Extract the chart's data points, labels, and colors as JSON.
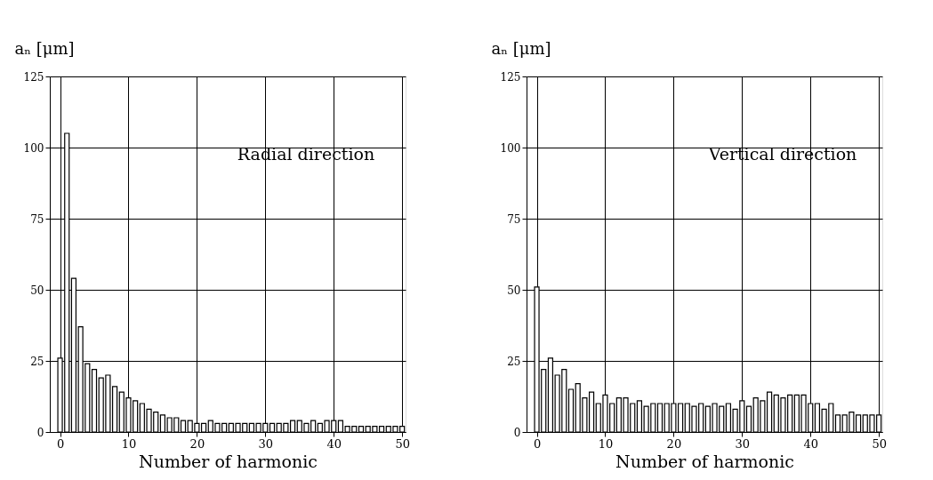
{
  "chart_data": [
    {
      "type": "bar",
      "ylabel": "aₙ [μm]",
      "xlabel": "Number of  harmonic",
      "annotations": [
        "Radial direction"
      ],
      "x": [
        0,
        1,
        2,
        3,
        4,
        5,
        6,
        7,
        8,
        9,
        10,
        11,
        12,
        13,
        14,
        15,
        16,
        17,
        18,
        19,
        20,
        21,
        22,
        23,
        24,
        25,
        26,
        27,
        28,
        29,
        30,
        31,
        32,
        33,
        34,
        35,
        36,
        37,
        38,
        39,
        40,
        41,
        42,
        43,
        44,
        45,
        46,
        47,
        48,
        49,
        50
      ],
      "values": [
        26,
        105,
        54,
        37,
        24,
        22,
        19,
        20,
        16,
        14,
        12,
        11,
        10,
        8,
        7,
        6,
        5,
        5,
        4,
        4,
        3,
        3,
        4,
        3,
        3,
        3,
        3,
        3,
        3,
        3,
        3,
        3,
        3,
        3,
        4,
        4,
        3,
        4,
        3,
        4,
        4,
        4,
        2,
        2,
        2,
        2,
        2,
        2,
        2,
        2,
        2
      ],
      "color": "#ffffff",
      "xlim": [
        -1.5,
        50.5
      ],
      "xticks": [
        0,
        10,
        20,
        30,
        40,
        50
      ],
      "ylim": [
        0,
        125
      ],
      "yticks": [
        0,
        25,
        50,
        75,
        100,
        125
      ],
      "grid": true
    },
    {
      "type": "bar",
      "ylabel": "aₙ [μm]",
      "xlabel": "Number of  harmonic",
      "annotations": [
        "Vertical direction"
      ],
      "x": [
        0,
        1,
        2,
        3,
        4,
        5,
        6,
        7,
        8,
        9,
        10,
        11,
        12,
        13,
        14,
        15,
        16,
        17,
        18,
        19,
        20,
        21,
        22,
        23,
        24,
        25,
        26,
        27,
        28,
        29,
        30,
        31,
        32,
        33,
        34,
        35,
        36,
        37,
        38,
        39,
        40,
        41,
        42,
        43,
        44,
        45,
        46,
        47,
        48,
        49,
        50
      ],
      "values": [
        51,
        22,
        26,
        20,
        22,
        15,
        17,
        12,
        14,
        10,
        13,
        10,
        12,
        12,
        10,
        11,
        9,
        10,
        10,
        10,
        10,
        10,
        10,
        9,
        10,
        9,
        10,
        9,
        10,
        8,
        11,
        9,
        12,
        11,
        14,
        13,
        12,
        13,
        13,
        13,
        10,
        10,
        8,
        10,
        6,
        6,
        7,
        6,
        6,
        6,
        6
      ],
      "color": "#ffffff",
      "xlim": [
        -1.5,
        50.5
      ],
      "xticks": [
        0,
        10,
        20,
        30,
        40,
        50
      ],
      "ylim": [
        0,
        125
      ],
      "yticks": [
        0,
        25,
        50,
        75,
        100,
        125
      ],
      "grid": true
    }
  ]
}
